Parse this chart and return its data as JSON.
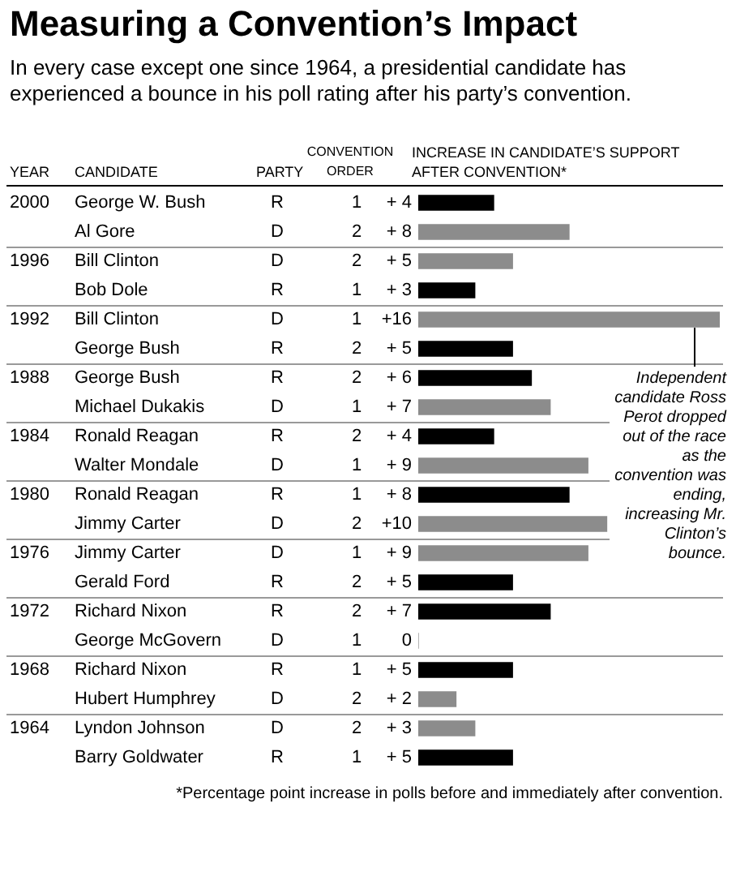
{
  "chart_data": {
    "type": "bar",
    "orientation": "horizontal",
    "title": "Measuring a Convention’s Impact",
    "subtitle": "In every case except one since 1964, a presidential candidate has experienced a bounce in his poll rating after his party’s convention.",
    "ylabel": "CANDIDATE",
    "xlabel": "INCREASE IN CANDIDATE’S SUPPORT AFTER CONVENTION*",
    "categories": [
      "George W. Bush",
      "Al Gore",
      "Bill Clinton",
      "Bob Dole",
      "Bill Clinton",
      "George Bush",
      "George Bush",
      "Michael Dukakis",
      "Ronald Reagan",
      "Walter Mondale",
      "Ronald Reagan",
      "Jimmy Carter",
      "Jimmy Carter",
      "Gerald Ford",
      "Richard Nixon",
      "George McGovern",
      "Richard Nixon",
      "Hubert Humphrey",
      "Lyndon Johnson",
      "Barry Goldwater"
    ],
    "values": [
      4,
      8,
      5,
      3,
      16,
      5,
      6,
      7,
      4,
      9,
      8,
      10,
      9,
      5,
      7,
      0,
      5,
      2,
      3,
      5
    ],
    "colors": [
      "#000000",
      "#8c8c8c",
      "#8c8c8c",
      "#000000",
      "#8c8c8c",
      "#000000",
      "#000000",
      "#8c8c8c",
      "#000000",
      "#8c8c8c",
      "#000000",
      "#8c8c8c",
      "#8c8c8c",
      "#000000",
      "#000000",
      "#8c8c8c",
      "#000000",
      "#8c8c8c",
      "#8c8c8c",
      "#000000"
    ],
    "value_labels": [
      "+ 4",
      "+ 8",
      "+ 5",
      "+ 3",
      "+16",
      "+ 5",
      "+ 6",
      "+ 7",
      "+ 4",
      "+ 9",
      "+ 8",
      "+10",
      "+ 9",
      "+ 5",
      "+ 7",
      "0",
      "+ 5",
      "+ 2",
      "+ 3",
      "+ 5"
    ],
    "annotations": [
      "YEAR",
      "PARTY",
      "CONVENTION ORDER",
      "2000",
      "1996",
      "1992",
      "1988",
      "1984",
      "1980",
      "1976",
      "1972",
      "1968",
      "1964",
      "R",
      "D",
      "D",
      "R",
      "D",
      "R",
      "R",
      "D",
      "R",
      "D",
      "R",
      "D",
      "D",
      "R",
      "R",
      "D",
      "R",
      "D",
      "D",
      "R",
      "1",
      "2",
      "2",
      "1",
      "1",
      "2",
      "2",
      "1",
      "2",
      "1",
      "1",
      "2",
      "1",
      "2",
      "2",
      "1",
      "1",
      "2",
      "2",
      "1",
      "Independent candidate Ross Perot dropped out of the race as the convention was ending, increasing Mr. Clinton’s bounce.",
      "*Percentage point increase in polls before and immediately after convention."
    ]
  }
}
